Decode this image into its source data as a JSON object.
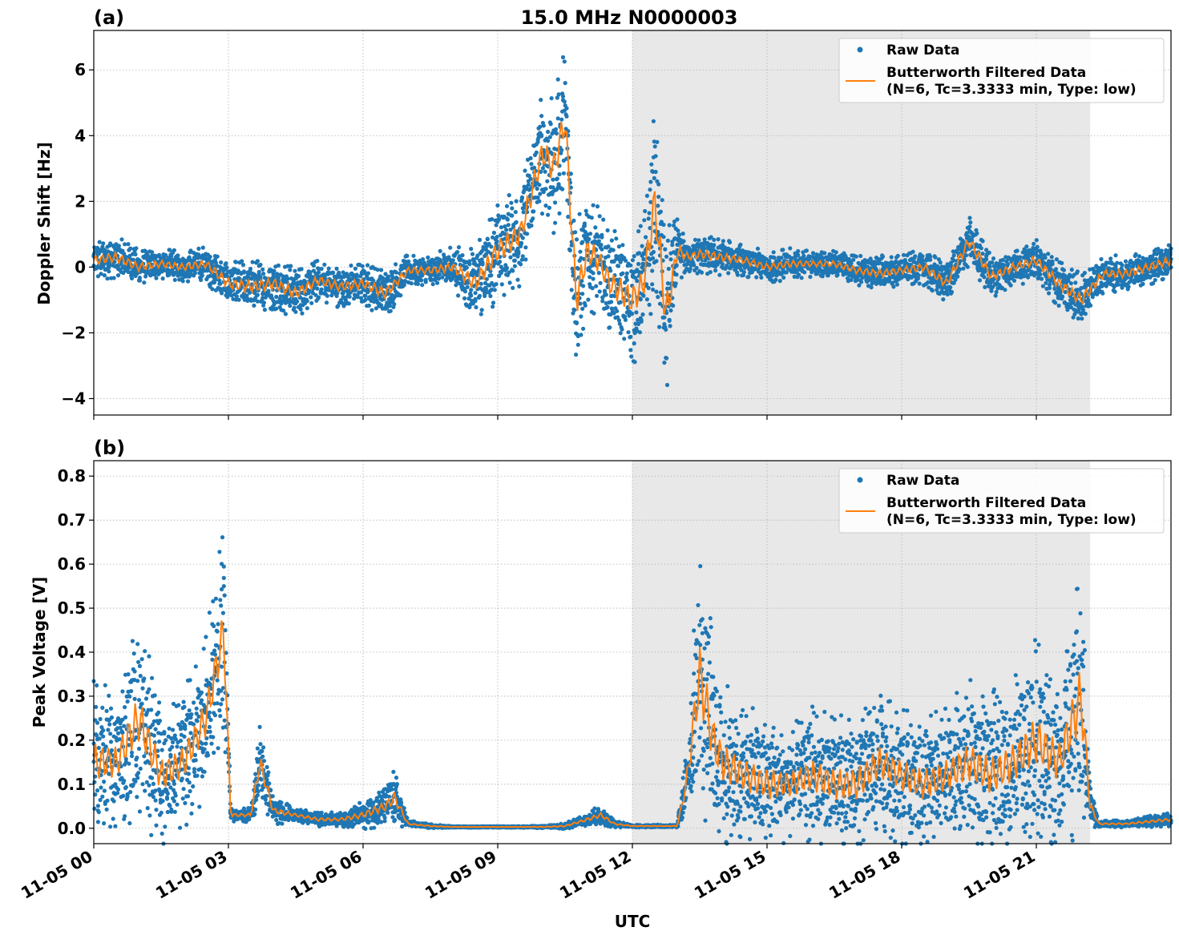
{
  "figure": {
    "title": "15.0 MHz N0000003",
    "xlabel": "UTC",
    "shade_color": "#e8e8e8",
    "colors": {
      "raw": "#1f77b4",
      "filtered": "#ff7f0e"
    }
  },
  "legend": {
    "raw": "Raw Data",
    "filtered_line1": "Butterworth Filtered Data",
    "filtered_line2": "(N=6, Tc=3.3333 min, Type: low)"
  },
  "chart_data": [
    {
      "type": "scatter",
      "panel_label": "(a)",
      "title": "15.0 MHz N0000003",
      "ylabel": "Doppler Shift [Hz]",
      "xlabel": "",
      "x_unit": "hours UTC on 11-05",
      "xlim": [
        0,
        24
      ],
      "ylim": [
        -4.5,
        7.2
      ],
      "yticks": [
        -4,
        -2,
        0,
        2,
        4,
        6
      ],
      "ytick_labels": [
        "−4",
        "−2",
        "0",
        "2",
        "4",
        "6"
      ],
      "grid": true,
      "legend_position": "top-right",
      "shaded_region": [
        12.0,
        22.2
      ],
      "series": [
        {
          "name": "Raw Data",
          "style": "dots",
          "x": [
            0,
            0.5,
            1,
            1.5,
            2,
            2.5,
            3,
            3.5,
            4,
            4.5,
            5,
            5.5,
            6,
            6.5,
            7,
            7.5,
            8,
            8.5,
            9,
            9.5,
            10,
            10.25,
            10.5,
            10.75,
            11,
            11.25,
            11.5,
            12,
            12.25,
            12.5,
            12.75,
            13,
            13.25,
            13.5,
            14,
            14.5,
            15,
            15.5,
            16,
            16.5,
            17,
            17.5,
            18,
            18.5,
            19,
            19.5,
            20,
            20.5,
            21,
            21.5,
            22,
            22.5,
            23,
            23.5,
            24
          ],
          "y": [
            0.2,
            0.3,
            0.0,
            0.1,
            0.0,
            0.1,
            -0.5,
            -0.6,
            -0.5,
            -0.8,
            -0.4,
            -0.6,
            -0.5,
            -0.8,
            -0.1,
            -0.1,
            0.0,
            -0.5,
            0.5,
            1.0,
            3.5,
            3.0,
            4.5,
            -1.0,
            0.5,
            0.2,
            -0.5,
            -1.0,
            -0.5,
            2.0,
            -1.5,
            0.5,
            0.3,
            0.4,
            0.3,
            0.2,
            0.0,
            0.1,
            0.1,
            0.1,
            -0.1,
            -0.2,
            -0.1,
            0.0,
            -0.5,
            0.8,
            -0.3,
            0.0,
            0.2,
            -0.5,
            -1.0,
            -0.2,
            -0.2,
            0.0,
            0.2
          ],
          "spread": [
            0.4,
            0.4,
            0.35,
            0.3,
            0.3,
            0.35,
            0.45,
            0.5,
            0.5,
            0.5,
            0.4,
            0.4,
            0.4,
            0.5,
            0.3,
            0.3,
            0.4,
            0.7,
            1.0,
            1.0,
            1.2,
            1.3,
            1.5,
            1.5,
            1.2,
            1.0,
            1.0,
            1.3,
            1.2,
            1.8,
            1.8,
            0.6,
            0.3,
            0.4,
            0.35,
            0.3,
            0.3,
            0.3,
            0.25,
            0.25,
            0.3,
            0.35,
            0.3,
            0.35,
            0.4,
            0.5,
            0.4,
            0.35,
            0.4,
            0.45,
            0.5,
            0.35,
            0.35,
            0.35,
            0.4
          ]
        },
        {
          "name": "Butterworth Filtered Data (N=6, Tc=3.3333 min, Type: low)",
          "style": "line",
          "x": [
            0,
            0.5,
            1,
            1.5,
            2,
            2.5,
            3,
            3.5,
            4,
            4.5,
            5,
            5.5,
            6,
            6.5,
            7,
            7.5,
            8,
            8.5,
            9,
            9.5,
            10,
            10.25,
            10.5,
            10.75,
            11,
            11.25,
            11.5,
            12,
            12.25,
            12.5,
            12.75,
            13,
            13.25,
            13.5,
            14,
            14.5,
            15,
            15.5,
            16,
            16.5,
            17,
            17.5,
            18,
            18.5,
            19,
            19.5,
            20,
            20.5,
            21,
            21.5,
            22,
            22.5,
            23,
            23.5,
            24
          ],
          "y": [
            0.2,
            0.3,
            0.0,
            0.1,
            0.0,
            0.1,
            -0.5,
            -0.6,
            -0.5,
            -0.8,
            -0.4,
            -0.6,
            -0.5,
            -0.8,
            -0.1,
            -0.1,
            0.0,
            -0.5,
            0.5,
            1.0,
            3.5,
            3.0,
            4.5,
            -1.0,
            0.5,
            0.2,
            -0.5,
            -1.0,
            -0.5,
            2.0,
            -1.5,
            0.5,
            0.3,
            0.4,
            0.3,
            0.2,
            0.0,
            0.1,
            0.1,
            0.1,
            -0.1,
            -0.2,
            -0.1,
            0.0,
            -0.5,
            0.8,
            -0.3,
            0.0,
            0.2,
            -0.5,
            -1.0,
            -0.2,
            -0.2,
            0.0,
            0.2
          ]
        }
      ]
    },
    {
      "type": "scatter",
      "panel_label": "(b)",
      "title": "",
      "ylabel": "Peak Voltage [V]",
      "xlabel": "UTC",
      "x_unit": "hours UTC on 11-05",
      "xlim": [
        0,
        24
      ],
      "ylim": [
        -0.035,
        0.835
      ],
      "yticks": [
        0.0,
        0.1,
        0.2,
        0.3,
        0.4,
        0.5,
        0.6,
        0.7,
        0.8
      ],
      "ytick_labels": [
        "0.0",
        "0.1",
        "0.2",
        "0.3",
        "0.4",
        "0.5",
        "0.6",
        "0.7",
        "0.8"
      ],
      "xticks": [
        0,
        3,
        6,
        9,
        12,
        15,
        18,
        21
      ],
      "xtick_labels": [
        "11-05 00",
        "11-05 03",
        "11-05 06",
        "11-05 09",
        "11-05 12",
        "11-05 15",
        "11-05 18",
        "11-05 21"
      ],
      "grid": true,
      "legend_position": "top-right",
      "shaded_region": [
        12.0,
        22.2
      ],
      "series": [
        {
          "name": "Raw Data",
          "style": "dots",
          "x": [
            0,
            0.5,
            1,
            1.5,
            2,
            2.5,
            2.9,
            3.05,
            3.5,
            3.7,
            4,
            4.5,
            5,
            5.5,
            6,
            6.5,
            6.7,
            7,
            7.5,
            8,
            8.5,
            9,
            9.5,
            10,
            10.5,
            11,
            11.3,
            11.6,
            12,
            12.5,
            13,
            13.2,
            13.5,
            13.8,
            14,
            14.5,
            15,
            15.5,
            16,
            16.5,
            17,
            17.5,
            18,
            18.5,
            19,
            19.5,
            20,
            20.5,
            21,
            21.5,
            22,
            22.2,
            22.4,
            23,
            23.5,
            24
          ],
          "y": [
            0.15,
            0.15,
            0.25,
            0.12,
            0.15,
            0.25,
            0.45,
            0.03,
            0.03,
            0.15,
            0.04,
            0.03,
            0.02,
            0.02,
            0.03,
            0.05,
            0.07,
            0.01,
            0.005,
            0.003,
            0.003,
            0.003,
            0.003,
            0.003,
            0.005,
            0.02,
            0.03,
            0.01,
            0.005,
            0.005,
            0.005,
            0.1,
            0.35,
            0.2,
            0.15,
            0.12,
            0.1,
            0.1,
            0.12,
            0.1,
            0.1,
            0.15,
            0.12,
            0.1,
            0.12,
            0.15,
            0.12,
            0.15,
            0.2,
            0.15,
            0.3,
            0.05,
            0.01,
            0.01,
            0.015,
            0.02
          ],
          "spread": [
            0.12,
            0.1,
            0.15,
            0.1,
            0.1,
            0.12,
            0.15,
            0.01,
            0.01,
            0.06,
            0.02,
            0.01,
            0.01,
            0.01,
            0.02,
            0.03,
            0.04,
            0.005,
            0.003,
            0.001,
            0.001,
            0.001,
            0.001,
            0.002,
            0.004,
            0.01,
            0.015,
            0.005,
            0.002,
            0.002,
            0.002,
            0.05,
            0.2,
            0.15,
            0.12,
            0.1,
            0.1,
            0.08,
            0.1,
            0.1,
            0.1,
            0.1,
            0.1,
            0.1,
            0.1,
            0.12,
            0.12,
            0.12,
            0.15,
            0.12,
            0.2,
            0.03,
            0.005,
            0.005,
            0.008,
            0.01
          ]
        },
        {
          "name": "Butterworth Filtered Data (N=6, Tc=3.3333 min, Type: low)",
          "style": "line",
          "x": [
            0,
            0.5,
            1,
            1.5,
            2,
            2.5,
            2.9,
            3.05,
            3.5,
            3.7,
            4,
            4.5,
            5,
            5.5,
            6,
            6.5,
            6.7,
            7,
            7.5,
            8,
            8.5,
            9,
            9.5,
            10,
            10.5,
            11,
            11.3,
            11.6,
            12,
            12.5,
            13,
            13.2,
            13.5,
            13.8,
            14,
            14.5,
            15,
            15.5,
            16,
            16.5,
            17,
            17.5,
            18,
            18.5,
            19,
            19.5,
            20,
            20.5,
            21,
            21.5,
            22,
            22.2,
            22.4,
            23,
            23.5,
            24
          ],
          "y": [
            0.15,
            0.15,
            0.25,
            0.12,
            0.15,
            0.25,
            0.45,
            0.03,
            0.03,
            0.15,
            0.04,
            0.03,
            0.02,
            0.02,
            0.03,
            0.05,
            0.07,
            0.01,
            0.005,
            0.003,
            0.003,
            0.003,
            0.003,
            0.003,
            0.005,
            0.02,
            0.03,
            0.01,
            0.005,
            0.005,
            0.005,
            0.1,
            0.35,
            0.2,
            0.15,
            0.12,
            0.1,
            0.1,
            0.12,
            0.1,
            0.1,
            0.15,
            0.12,
            0.1,
            0.12,
            0.15,
            0.12,
            0.15,
            0.2,
            0.15,
            0.3,
            0.05,
            0.01,
            0.01,
            0.015,
            0.02
          ]
        }
      ]
    }
  ]
}
